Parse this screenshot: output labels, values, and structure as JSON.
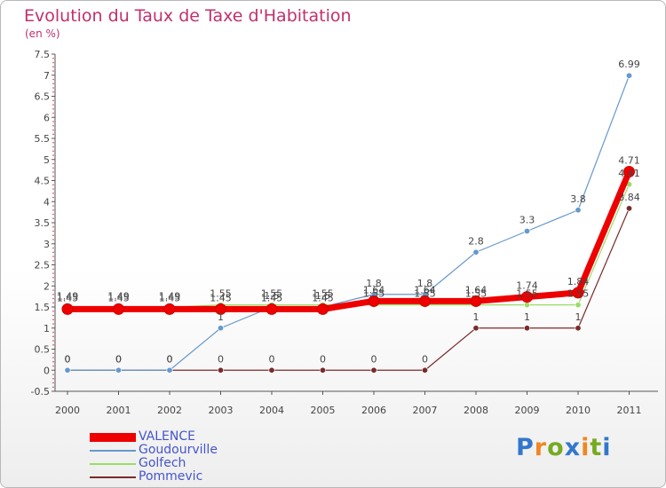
{
  "title": "Evolution du Taux de Taxe d'Habitation",
  "subtitle": "(en %)",
  "colors": {
    "title": "#c0306e",
    "axis_text": "#444444",
    "legend_text": "#4455cc"
  },
  "logo": {
    "letters": [
      "P",
      "r",
      "o",
      "x",
      "i",
      "t",
      "i"
    ],
    "colors": [
      "#3377cc",
      "#ee8822",
      "#77aa22",
      "#3377cc",
      "#ee8822",
      "#77aa22",
      "#3377cc"
    ]
  },
  "chart_data": {
    "type": "line",
    "title": "Evolution du Taux de Taxe d'Habitation",
    "subtitle": "(en %)",
    "x": [
      "2000",
      "2001",
      "2002",
      "2003",
      "2004",
      "2005",
      "2006",
      "2007",
      "2008",
      "2009",
      "2010",
      "2011"
    ],
    "ylim": [
      -0.5,
      7.5
    ],
    "yticks": [
      "7.5",
      "7",
      "6.5",
      "6",
      "5.5",
      "5",
      "4.5",
      "4",
      "3.5",
      "3",
      "2.5",
      "2",
      "1.5",
      "1",
      "0.5",
      "0",
      "-0.5"
    ],
    "ytick_values": [
      7.5,
      7,
      6.5,
      6,
      5.5,
      5,
      4.5,
      4,
      3.5,
      3,
      2.5,
      2,
      1.5,
      1,
      0.5,
      0,
      -0.5
    ],
    "grid": false,
    "legend_position": "bottom-left",
    "series": [
      {
        "name": "VALENCE",
        "color": "#ee0000",
        "values": [
          1.45,
          1.45,
          1.45,
          1.45,
          1.45,
          1.45,
          1.64,
          1.64,
          1.64,
          1.74,
          1.84,
          4.71
        ],
        "labels": [
          "1.45",
          "1.45",
          "1.45",
          "1.45",
          "1.45",
          "1.45",
          "1.64",
          "1.64",
          "1.64",
          "1.74",
          "1.84",
          "4.71"
        ]
      },
      {
        "name": "Goudourville",
        "color": "#6699cc",
        "values": [
          0,
          0,
          0,
          1,
          1.5,
          1.5,
          1.8,
          1.8,
          2.8,
          3.3,
          3.8,
          6.99
        ],
        "labels": [
          "0",
          "0",
          "0",
          "1",
          "1.5",
          "1.5",
          "1.8",
          "1.8",
          "2.8",
          "3.3",
          "3.8",
          "6.99"
        ]
      },
      {
        "name": "Golfech",
        "color": "#99dd66",
        "values": [
          1.49,
          1.49,
          1.49,
          1.55,
          1.55,
          1.55,
          1.55,
          1.55,
          1.55,
          1.55,
          1.55,
          4.41
        ],
        "labels": [
          "1.49",
          "1.49",
          "1.49",
          "1.55",
          "1.55",
          "1.55",
          "1.55",
          "1.55",
          "1.55",
          "1.55",
          "1.55",
          "4.41"
        ]
      },
      {
        "name": "Pommevic",
        "color": "#7a2a2a",
        "values": [
          0,
          0,
          0,
          0,
          0,
          0,
          0,
          0,
          1,
          1,
          1,
          3.84
        ],
        "labels": [
          "0",
          "0",
          "0",
          "0",
          "0",
          "0",
          "0",
          "0",
          "1",
          "1",
          "1",
          "3.84"
        ]
      }
    ]
  }
}
